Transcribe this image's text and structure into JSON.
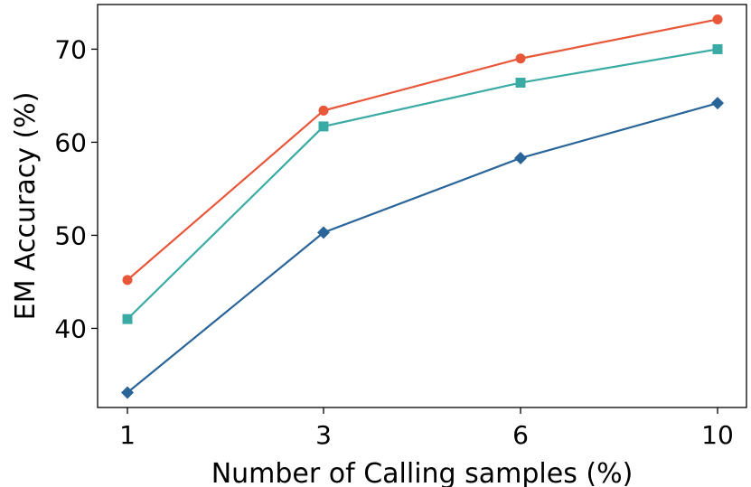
{
  "chart_data": {
    "type": "line",
    "title": "",
    "xlabel": "Number of Calling samples (%)",
    "ylabel": "EM Accuracy (%)",
    "x": [
      1,
      3,
      6,
      10
    ],
    "x_tick_labels": [
      "1",
      "3",
      "6",
      "10"
    ],
    "y_ticks": [
      40,
      50,
      60,
      70
    ],
    "ylim": [
      31.5,
      74.8
    ],
    "grid": false,
    "legend": "none",
    "series": [
      {
        "color": "#e8573a",
        "marker": "circle",
        "values": [
          45.2,
          63.4,
          69.0,
          73.2
        ]
      },
      {
        "color": "#3aaba4",
        "marker": "square",
        "values": [
          41.0,
          61.7,
          66.4,
          70.0
        ]
      },
      {
        "color": "#2a6599",
        "marker": "diamond",
        "values": [
          33.1,
          50.3,
          58.3,
          64.2
        ]
      }
    ]
  }
}
